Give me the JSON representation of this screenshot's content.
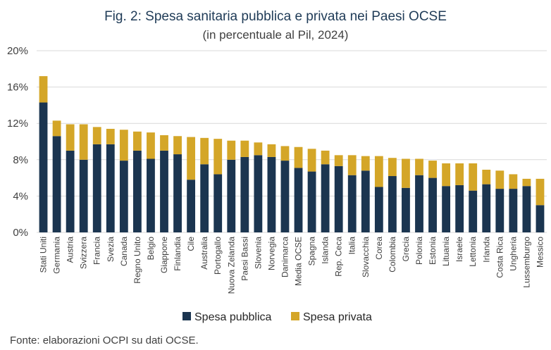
{
  "chart_data": {
    "type": "bar",
    "stacked": true,
    "title": "Fig. 2: Spesa sanitaria pubblica e privata nei Paesi OCSE",
    "subtitle": "(in percentuale al Pil, 2024)",
    "ylim": [
      0,
      20
    ],
    "yticks": [
      "0%",
      "4%",
      "8%",
      "12%",
      "16%",
      "20%"
    ],
    "ytick_values": [
      0,
      4,
      8,
      12,
      16,
      20
    ],
    "grid": true,
    "legend_position": "bottom",
    "categories": [
      "Stati Uniti",
      "Germania",
      "Austria",
      "Svizzera",
      "Francia",
      "Svezia",
      "Canada",
      "Regno Unito",
      "Belgio",
      "Giappone",
      "Finlandia",
      "Cile",
      "Australia",
      "Portogallo",
      "Nuova Zelanda",
      "Paesi Bassi",
      "Slovenia",
      "Norvegia",
      "Danimarca",
      "Media OCSE",
      "Spagna",
      "Islanda",
      "Rep. Ceca",
      "Italia",
      "Slovacchia",
      "Corea",
      "Colombia",
      "Grecia",
      "Polonia",
      "Estonia",
      "Lituania",
      "Israele",
      "Lettonia",
      "Irlanda",
      "Costa Rica",
      "Ungheria",
      "Lussemburgo",
      "Messico"
    ],
    "series": [
      {
        "name": "Spesa pubblica",
        "color": "#1b3550",
        "values": [
          14.3,
          10.6,
          9.0,
          8.0,
          9.7,
          9.7,
          7.9,
          9.0,
          8.1,
          9.0,
          8.6,
          5.8,
          7.5,
          6.4,
          8.0,
          8.3,
          8.5,
          8.3,
          7.9,
          7.1,
          6.7,
          7.5,
          7.3,
          6.3,
          6.8,
          5.0,
          6.2,
          4.9,
          6.3,
          6.0,
          5.1,
          5.2,
          4.6,
          5.3,
          4.8,
          4.8,
          5.1,
          3.0
        ]
      },
      {
        "name": "Spesa privata",
        "color": "#d4a628",
        "values": [
          2.9,
          1.7,
          2.9,
          3.9,
          1.9,
          1.7,
          3.4,
          2.1,
          2.9,
          1.7,
          2.0,
          4.7,
          2.9,
          3.9,
          2.1,
          1.8,
          1.4,
          1.4,
          1.6,
          2.3,
          2.5,
          1.5,
          1.2,
          2.2,
          1.6,
          3.4,
          2.0,
          3.2,
          1.8,
          1.9,
          2.5,
          2.4,
          3.0,
          1.6,
          2.0,
          1.6,
          0.8,
          2.9
        ]
      }
    ]
  },
  "source": "Fonte: elaborazioni OCPI su dati OCSE."
}
